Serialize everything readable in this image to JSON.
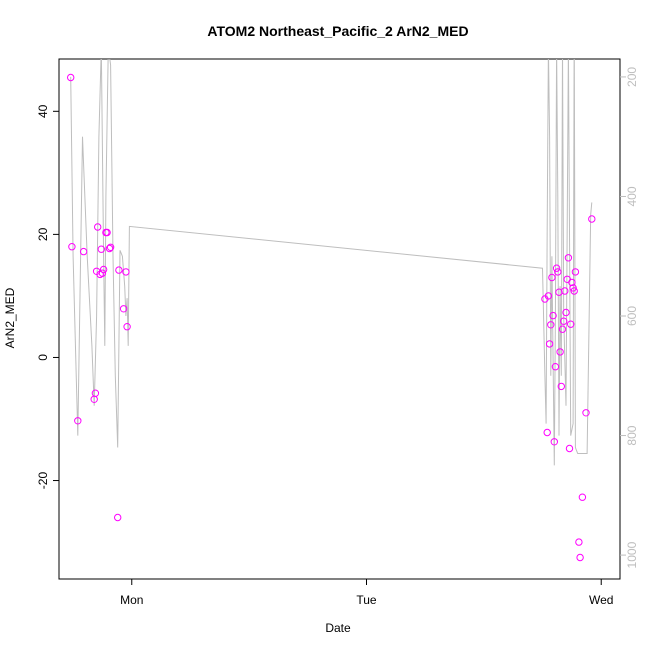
{
  "chart_data": {
    "type": "scatter",
    "title": "ATOM2 Northeast_Pacific_2 ArN2_MED",
    "xlabel": "Date",
    "ylabel": "ArN2_MED",
    "x_ticks": [
      {
        "label": "Mon",
        "value": 0
      },
      {
        "label": "Tue",
        "value": 1
      },
      {
        "label": "Wed",
        "value": 2
      }
    ],
    "xlim": [
      -0.31,
      2.08
    ],
    "ylim": [
      -36,
      48.5
    ],
    "y_ticks": [
      -20,
      0,
      20,
      40
    ],
    "secondary_axis": {
      "ticks": [
        200,
        400,
        600,
        800,
        1000
      ],
      "lim": [
        1040,
        170
      ],
      "color": "#bebebe",
      "reversed": true
    },
    "point_color": "#ff00ff",
    "line_color": "#bebebe",
    "series": [
      {
        "values": [
          [
            -0.26,
            45.5
          ],
          [
            -0.255,
            18.0
          ],
          [
            -0.23,
            -10.3
          ],
          [
            -0.205,
            17.2
          ],
          [
            -0.16,
            -6.8
          ],
          [
            -0.155,
            -5.8
          ],
          [
            -0.15,
            14.0
          ],
          [
            -0.145,
            21.2
          ],
          [
            -0.135,
            13.5
          ],
          [
            -0.13,
            17.6
          ],
          [
            -0.125,
            13.7
          ],
          [
            -0.12,
            14.3
          ],
          [
            -0.11,
            20.3
          ],
          [
            -0.105,
            20.3
          ],
          [
            -0.095,
            17.7
          ],
          [
            -0.09,
            17.9
          ],
          [
            -0.06,
            -26.0
          ],
          [
            -0.055,
            14.2
          ],
          [
            -0.035,
            7.9
          ],
          [
            -0.025,
            13.9
          ],
          [
            -0.02,
            5.0
          ],
          [
            1.76,
            9.5
          ],
          [
            1.77,
            -12.2
          ],
          [
            1.775,
            10.0
          ],
          [
            1.78,
            2.2
          ],
          [
            1.785,
            5.3
          ],
          [
            1.79,
            13.0
          ],
          [
            1.795,
            6.8
          ],
          [
            1.8,
            -13.7
          ],
          [
            1.805,
            -1.5
          ],
          [
            1.81,
            14.5
          ],
          [
            1.815,
            13.9
          ],
          [
            1.82,
            10.6
          ],
          [
            1.825,
            0.9
          ],
          [
            1.83,
            -4.7
          ],
          [
            1.835,
            4.6
          ],
          [
            1.84,
            5.9
          ],
          [
            1.845,
            10.8
          ],
          [
            1.85,
            7.3
          ],
          [
            1.855,
            12.7
          ],
          [
            1.86,
            16.2
          ],
          [
            1.865,
            -14.8
          ],
          [
            1.87,
            5.4
          ],
          [
            1.875,
            12.2
          ],
          [
            1.88,
            11.3
          ],
          [
            1.885,
            10.8
          ],
          [
            1.89,
            13.9
          ],
          [
            1.905,
            -30.0
          ],
          [
            1.91,
            -32.5
          ],
          [
            1.92,
            -22.7
          ],
          [
            1.935,
            -9.0
          ],
          [
            1.96,
            22.5
          ]
        ]
      },
      {
        "axis": "secondary",
        "values": [
          [
            -0.26,
            200
          ],
          [
            -0.25,
            500
          ],
          [
            -0.23,
            800
          ],
          [
            -0.21,
            300
          ],
          [
            -0.19,
            500
          ],
          [
            -0.17,
            650
          ],
          [
            -0.16,
            750
          ],
          [
            -0.15,
            600
          ],
          [
            -0.14,
            300
          ],
          [
            -0.13,
            150
          ],
          [
            -0.12,
            500
          ],
          [
            -0.115,
            650
          ],
          [
            -0.11,
            400
          ],
          [
            -0.1,
            150
          ],
          [
            -0.09,
            180
          ],
          [
            -0.08,
            500
          ],
          [
            -0.07,
            700
          ],
          [
            -0.06,
            820
          ],
          [
            -0.055,
            650
          ],
          [
            -0.05,
            490
          ],
          [
            -0.04,
            500
          ],
          [
            -0.03,
            550
          ],
          [
            -0.025,
            600
          ],
          [
            -0.02,
            570
          ],
          [
            -0.015,
            650
          ],
          [
            -0.01,
            450
          ],
          [
            1.75,
            520
          ],
          [
            1.76,
            700
          ],
          [
            1.765,
            780
          ],
          [
            1.77,
            450
          ],
          [
            1.775,
            150
          ],
          [
            1.78,
            300
          ],
          [
            1.785,
            700
          ],
          [
            1.79,
            500
          ],
          [
            1.8,
            850
          ],
          [
            1.805,
            600
          ],
          [
            1.81,
            150
          ],
          [
            1.815,
            400
          ],
          [
            1.82,
            800
          ],
          [
            1.825,
            550
          ],
          [
            1.83,
            700
          ],
          [
            1.835,
            150
          ],
          [
            1.84,
            600
          ],
          [
            1.85,
            750
          ],
          [
            1.86,
            150
          ],
          [
            1.87,
            800
          ],
          [
            1.88,
            780
          ],
          [
            1.885,
            100
          ],
          [
            1.89,
            820
          ],
          [
            1.9,
            830
          ],
          [
            1.92,
            830
          ],
          [
            1.94,
            830
          ],
          [
            1.955,
            430
          ],
          [
            1.96,
            410
          ]
        ]
      }
    ],
    "grid": false
  }
}
